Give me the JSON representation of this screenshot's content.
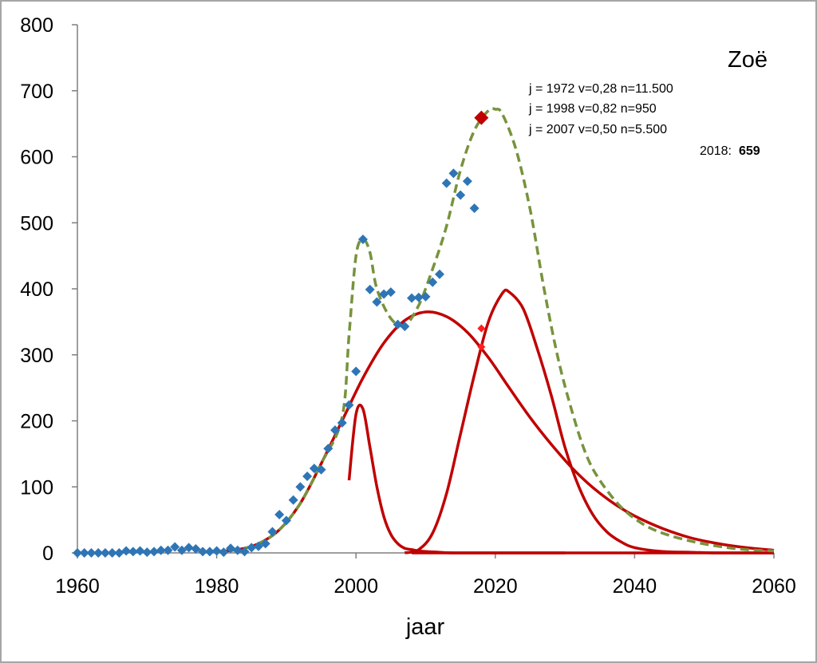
{
  "chart_data": {
    "type": "line",
    "title": "Zoë",
    "xlabel": "jaar",
    "ylabel": "",
    "xlim": [
      1960,
      2060
    ],
    "ylim": [
      0,
      800
    ],
    "xticks": [
      1960,
      1980,
      2000,
      2020,
      2040,
      2060
    ],
    "yticks": [
      0,
      100,
      200,
      300,
      400,
      500,
      600,
      700,
      800
    ],
    "grid": false,
    "annotations": [
      "j = 1972 v=0,28 n=11.500",
      "j = 1998 v=0,82 n=950",
      "j = 2007 v=0,50 n=5.500"
    ],
    "highlight": {
      "label": "2018:",
      "value_label": "659",
      "x": 2018,
      "y": 659,
      "color": "#c00000"
    },
    "colors": {
      "observed": "#2e75b6",
      "component": "#c00000",
      "total": "#77933c"
    },
    "series": [
      {
        "kind": "observed-points",
        "x": [
          1960,
          1961,
          1962,
          1963,
          1964,
          1965,
          1966,
          1967,
          1968,
          1969,
          1970,
          1971,
          1972,
          1973,
          1974,
          1975,
          1976,
          1977,
          1978,
          1979,
          1980,
          1981,
          1982,
          1983,
          1984,
          1985,
          1986,
          1987,
          1988,
          1989,
          1990,
          1991,
          1992,
          1993,
          1994,
          1995,
          1996,
          1997,
          1998,
          1999,
          2000,
          2001,
          2002,
          2003,
          2004,
          2005,
          2006,
          2007,
          2008,
          2009,
          2010,
          2011,
          2012,
          2013,
          2014,
          2015,
          2016,
          2017
        ],
        "y": [
          0,
          0,
          0,
          0,
          0,
          0,
          0,
          3,
          2,
          3,
          1,
          2,
          4,
          4,
          9,
          4,
          8,
          6,
          2,
          2,
          3,
          1,
          7,
          4,
          2,
          8,
          10,
          14,
          32,
          58,
          49,
          80,
          100,
          116,
          128,
          126,
          158,
          186,
          197,
          224,
          275,
          475,
          399,
          380,
          392,
          395,
          346,
          343,
          386,
          387,
          388,
          410,
          422,
          560,
          575,
          542,
          563,
          522
        ]
      },
      {
        "kind": "component",
        "x": [
          1980,
          1983,
          1986,
          1989,
          1992,
          1995,
          1998,
          2001,
          2004,
          2007,
          2010,
          2013,
          2016,
          2019,
          2022,
          2025,
          2028,
          2031,
          2034,
          2037,
          2040,
          2044,
          2048,
          2052,
          2056,
          2060
        ],
        "y": [
          2,
          5,
          14,
          35,
          75,
          135,
          200,
          265,
          318,
          352,
          365,
          358,
          334,
          296,
          250,
          205,
          165,
          129,
          99,
          75,
          56,
          37,
          23,
          14,
          8,
          4
        ]
      },
      {
        "kind": "component",
        "x": [
          1999,
          2000,
          2001,
          2002,
          2003,
          2004,
          2005,
          2006,
          2007,
          2008,
          2009,
          2010,
          2012,
          2015,
          2030
        ],
        "y": [
          110,
          210,
          218,
          160,
          100,
          55,
          28,
          14,
          7,
          5,
          3,
          2,
          1,
          0,
          0
        ]
      },
      {
        "kind": "component",
        "x": [
          2007,
          2009,
          2011,
          2013,
          2015,
          2017,
          2019,
          2021,
          2022,
          2024,
          2026,
          2028,
          2030,
          2032,
          2034,
          2036,
          2038,
          2040,
          2044,
          2048,
          2052,
          2060
        ],
        "y": [
          0,
          5,
          30,
          90,
          180,
          270,
          350,
          393,
          395,
          370,
          310,
          240,
          160,
          100,
          58,
          32,
          17,
          8,
          2,
          1,
          0,
          0
        ]
      },
      {
        "kind": "total",
        "x": [
          1980,
          1983,
          1986,
          1989,
          1992,
          1995,
          1998,
          1999,
          2000,
          2001,
          2002,
          2003,
          2005,
          2007,
          2009,
          2011,
          2013,
          2015,
          2017,
          2019,
          2020,
          2021,
          2023,
          2025,
          2027,
          2029,
          2031,
          2033,
          2035,
          2038,
          2041,
          2044,
          2048,
          2052,
          2056,
          2060
        ],
        "y": [
          2,
          5,
          14,
          35,
          75,
          135,
          205,
          330,
          450,
          475,
          455,
          400,
          355,
          345,
          375,
          430,
          495,
          580,
          640,
          670,
          672,
          665,
          610,
          520,
          400,
          295,
          215,
          150,
          110,
          70,
          45,
          30,
          18,
          10,
          5,
          3
        ]
      }
    ]
  }
}
